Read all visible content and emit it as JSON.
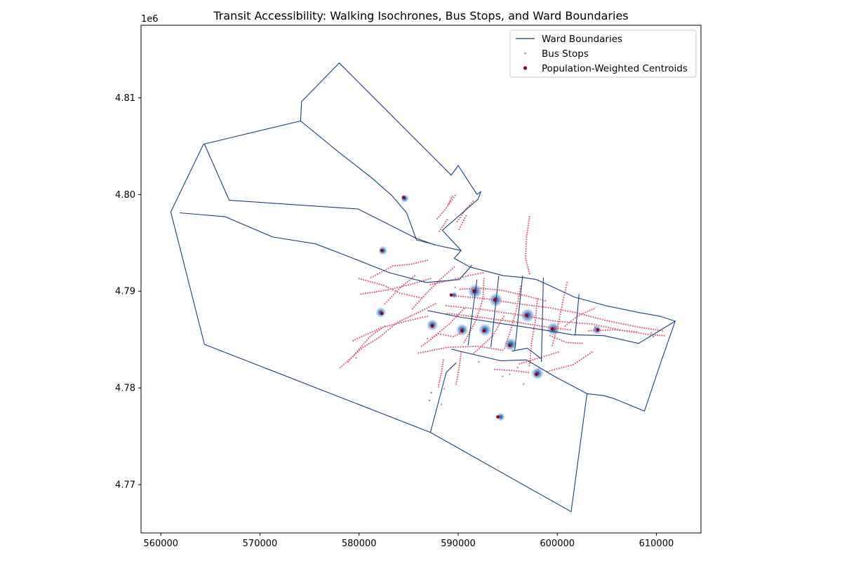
{
  "chart_data": {
    "type": "map",
    "title": "Transit Accessibility: Walking Isochrones, Bus Stops, and Ward Boundaries",
    "xlim": [
      558000,
      614500
    ],
    "ylim": [
      4765000,
      4817500
    ],
    "y_offset_label": "1e6",
    "xticks": [
      560000,
      570000,
      580000,
      590000,
      600000,
      610000
    ],
    "xtick_labels": [
      "560000",
      "570000",
      "580000",
      "590000",
      "600000",
      "610000"
    ],
    "yticks": [
      4770000,
      4780000,
      4790000,
      4800000,
      4810000
    ],
    "ytick_labels": [
      "4.77",
      "4.78",
      "4.79",
      "4.80",
      "4.81"
    ],
    "colors": {
      "ward_boundary": "#1f3d73",
      "bus_stop": "#d46b7e",
      "centroid": "#8b0020",
      "isochrone_outer": "#aec9e8",
      "isochrone_mid": "#6f95c4",
      "isochrone_inner": "#2f5a96"
    },
    "legend": {
      "position": "top-right",
      "entries": [
        {
          "label": "Ward Boundaries",
          "kind": "line"
        },
        {
          "label": "Bus Stops",
          "kind": "small-point"
        },
        {
          "label": "Population-Weighted Centroids",
          "kind": "point"
        }
      ]
    },
    "outer_boundary": [
      [
        561000,
        4798200
      ],
      [
        564300,
        4805200
      ],
      [
        574100,
        4807600
      ],
      [
        574200,
        4809600
      ],
      [
        578000,
        4813600
      ],
      [
        589300,
        4802000
      ],
      [
        590000,
        4803000
      ],
      [
        591900,
        4800000
      ],
      [
        592300,
        4800300
      ],
      [
        592000,
        4799500
      ],
      [
        588400,
        4796300
      ],
      [
        590300,
        4794200
      ],
      [
        589600,
        4793400
      ],
      [
        591200,
        4792500
      ],
      [
        594600,
        4791600
      ],
      [
        596700,
        4791400
      ],
      [
        597900,
        4791200
      ],
      [
        599400,
        4790500
      ],
      [
        601700,
        4789400
      ],
      [
        604900,
        4788500
      ],
      [
        608200,
        4787800
      ],
      [
        610400,
        4787400
      ],
      [
        611900,
        4786900
      ],
      [
        610500,
        4782800
      ],
      [
        608800,
        4777600
      ],
      [
        605700,
        4778900
      ],
      [
        604700,
        4779200
      ],
      [
        603000,
        4779400
      ],
      [
        601400,
        4767200
      ],
      [
        587200,
        4775400
      ],
      [
        564400,
        4784500
      ],
      [
        561000,
        4798200
      ]
    ],
    "inner_boundaries": [
      [
        [
          561900,
          4798100
        ],
        [
          566500,
          4797700
        ],
        [
          571300,
          4795600
        ],
        [
          575600,
          4794900
        ],
        [
          579400,
          4793400
        ],
        [
          583100,
          4791900
        ],
        [
          586800,
          4790900
        ],
        [
          590100,
          4791200
        ],
        [
          591400,
          4792700
        ]
      ],
      [
        [
          564400,
          4805200
        ],
        [
          566900,
          4799400
        ],
        [
          579900,
          4798500
        ],
        [
          585700,
          4795500
        ],
        [
          587600,
          4794800
        ],
        [
          590300,
          4794200
        ]
      ],
      [
        [
          574100,
          4807600
        ],
        [
          577800,
          4804500
        ],
        [
          581300,
          4801700
        ],
        [
          583300,
          4799900
        ],
        [
          584800,
          4798100
        ],
        [
          585800,
          4795300
        ],
        [
          587700,
          4794800
        ]
      ],
      [
        [
          587200,
          4775400
        ],
        [
          588800,
          4781600
        ],
        [
          589800,
          4782600
        ]
      ],
      [
        [
          589300,
          4784000
        ],
        [
          594300,
          4782800
        ],
        [
          596900,
          4782900
        ],
        [
          599700,
          4781200
        ],
        [
          603000,
          4779400
        ]
      ],
      [
        [
          586900,
          4788000
        ],
        [
          590300,
          4787300
        ],
        [
          594700,
          4786600
        ],
        [
          598600,
          4786000
        ],
        [
          601500,
          4785500
        ],
        [
          604700,
          4785400
        ],
        [
          608200,
          4784600
        ],
        [
          611900,
          4786900
        ]
      ],
      [
        [
          591000,
          4784400
        ],
        [
          591900,
          4791200
        ]
      ],
      [
        [
          593300,
          4784200
        ],
        [
          594100,
          4791600
        ]
      ],
      [
        [
          595700,
          4783800
        ],
        [
          596500,
          4791600
        ]
      ],
      [
        [
          598400,
          4782700
        ],
        [
          598600,
          4791400
        ]
      ],
      [
        [
          601800,
          4785400
        ],
        [
          602200,
          4789700
        ]
      ],
      [
        [
          595400,
          4783800
        ],
        [
          597000,
          4784100
        ],
        [
          598400,
          4783000
        ]
      ]
    ],
    "isochrones": [
      {
        "x": 584600,
        "y": 4799600,
        "r": 380
      },
      {
        "x": 582400,
        "y": 4794200,
        "r": 420
      },
      {
        "x": 582200,
        "y": 4787800,
        "r": 480
      },
      {
        "x": 587400,
        "y": 4786500,
        "r": 520
      },
      {
        "x": 589600,
        "y": 4789600,
        "r": 300
      },
      {
        "x": 591700,
        "y": 4790000,
        "r": 650
      },
      {
        "x": 593800,
        "y": 4789100,
        "r": 620
      },
      {
        "x": 597000,
        "y": 4787500,
        "r": 640
      },
      {
        "x": 599600,
        "y": 4786100,
        "r": 600
      },
      {
        "x": 604000,
        "y": 4786000,
        "r": 420
      },
      {
        "x": 590400,
        "y": 4786000,
        "r": 560
      },
      {
        "x": 592700,
        "y": 4786000,
        "r": 580
      },
      {
        "x": 595300,
        "y": 4784500,
        "r": 600
      },
      {
        "x": 598000,
        "y": 4781500,
        "r": 560
      },
      {
        "x": 594300,
        "y": 4777000,
        "r": 380
      }
    ],
    "centroids": [
      [
        584500,
        4799700
      ],
      [
        582300,
        4794200
      ],
      [
        582300,
        4787700
      ],
      [
        587400,
        4786400
      ],
      [
        589300,
        4789600
      ],
      [
        591600,
        4790000
      ],
      [
        593700,
        4789100
      ],
      [
        596900,
        4787500
      ],
      [
        599500,
        4786100
      ],
      [
        604100,
        4786000
      ],
      [
        590400,
        4785900
      ],
      [
        592600,
        4785900
      ],
      [
        595200,
        4784400
      ],
      [
        597900,
        4781400
      ],
      [
        594000,
        4777000
      ]
    ],
    "bus_stop_corridors": [
      [
        [
          578100,
          4782100
        ],
        [
          580400,
          4784200
        ],
        [
          582000,
          4785200
        ],
        [
          583900,
          4786800
        ],
        [
          586200,
          4787900
        ],
        [
          587700,
          4788700
        ]
      ],
      [
        [
          578900,
          4782700
        ],
        [
          581100,
          4785300
        ],
        [
          582600,
          4786400
        ]
      ],
      [
        [
          579400,
          4784900
        ],
        [
          582200,
          4786200
        ],
        [
          584700,
          4786900
        ],
        [
          586900,
          4787400
        ]
      ],
      [
        [
          580200,
          4789700
        ],
        [
          582700,
          4790100
        ],
        [
          585200,
          4790700
        ],
        [
          587200,
          4791300
        ]
      ],
      [
        [
          580000,
          4791300
        ],
        [
          582500,
          4790600
        ],
        [
          584100,
          4789800
        ],
        [
          586300,
          4789300
        ]
      ],
      [
        [
          581200,
          4791400
        ],
        [
          583400,
          4792600
        ],
        [
          585300,
          4792800
        ],
        [
          586900,
          4793200
        ]
      ],
      [
        [
          585400,
          4788200
        ],
        [
          587000,
          4790000
        ],
        [
          588500,
          4791500
        ],
        [
          589600,
          4792500
        ]
      ],
      [
        [
          582600,
          4788700
        ],
        [
          584000,
          4790200
        ],
        [
          585600,
          4791600
        ]
      ],
      [
        [
          586000,
          4783600
        ],
        [
          589000,
          4784200
        ],
        [
          592000,
          4784300
        ],
        [
          594500,
          4783900
        ]
      ],
      [
        [
          586300,
          4784300
        ],
        [
          588000,
          4785600
        ],
        [
          589500,
          4785300
        ],
        [
          590500,
          4785800
        ]
      ],
      [
        [
          587200,
          4790700
        ],
        [
          589500,
          4791200
        ],
        [
          591000,
          4791600
        ],
        [
          592500,
          4791900
        ]
      ],
      [
        [
          587900,
          4797500
        ],
        [
          588800,
          4798600
        ],
        [
          589700,
          4799900
        ]
      ],
      [
        [
          589900,
          4797200
        ],
        [
          590800,
          4798500
        ],
        [
          591500,
          4799300
        ]
      ],
      [
        [
          588100,
          4796200
        ],
        [
          588900,
          4797400
        ]
      ],
      [
        [
          589000,
          4799000
        ],
        [
          589400,
          4799800
        ]
      ],
      [
        [
          590100,
          4796400
        ],
        [
          590800,
          4797800
        ]
      ],
      [
        [
          597200,
          4797700
        ],
        [
          596900,
          4795600
        ],
        [
          596800,
          4793400
        ],
        [
          597200,
          4791800
        ]
      ],
      [
        [
          599000,
          4781700
        ],
        [
          601600,
          4782400
        ],
        [
          603500,
          4783700
        ]
      ],
      [
        [
          588800,
          4788500
        ],
        [
          592500,
          4788100
        ],
        [
          596500,
          4787500
        ],
        [
          599800,
          4786900
        ],
        [
          603500,
          4786600
        ],
        [
          606800,
          4785900
        ],
        [
          609400,
          4785500
        ],
        [
          610800,
          4785400
        ]
      ],
      [
        [
          588900,
          4787700
        ],
        [
          592200,
          4787300
        ],
        [
          595900,
          4786800
        ],
        [
          598900,
          4786300
        ],
        [
          601300,
          4786000
        ]
      ],
      [
        [
          589800,
          4789500
        ],
        [
          592900,
          4789200
        ],
        [
          596000,
          4788700
        ],
        [
          599100,
          4788300
        ],
        [
          601800,
          4787800
        ],
        [
          604800,
          4787000
        ],
        [
          608100,
          4786300
        ],
        [
          610600,
          4785900
        ]
      ],
      [
        [
          590200,
          4790200
        ],
        [
          592300,
          4790300
        ],
        [
          594400,
          4790100
        ],
        [
          596900,
          4789500
        ],
        [
          598800,
          4789000
        ]
      ],
      [
        [
          590600,
          4784700
        ],
        [
          591800,
          4787000
        ],
        [
          592500,
          4789200
        ],
        [
          592600,
          4791300
        ]
      ],
      [
        [
          594700,
          4784100
        ],
        [
          595300,
          4786000
        ],
        [
          595900,
          4788200
        ],
        [
          596300,
          4790500
        ]
      ],
      [
        [
          597200,
          4782300
        ],
        [
          597400,
          4784600
        ],
        [
          597800,
          4787000
        ],
        [
          598000,
          4789200
        ]
      ],
      [
        [
          599500,
          4784400
        ],
        [
          600100,
          4786600
        ],
        [
          600600,
          4789100
        ],
        [
          601000,
          4790900
        ]
      ],
      [
        [
          600800,
          4786400
        ],
        [
          602000,
          4787400
        ],
        [
          603700,
          4788200
        ]
      ],
      [
        [
          603200,
          4785900
        ],
        [
          605800,
          4786000
        ],
        [
          608000,
          4785800
        ]
      ],
      [
        [
          591600,
          4783600
        ],
        [
          593500,
          4785400
        ],
        [
          594600,
          4787400
        ]
      ],
      [
        [
          596200,
          4782500
        ],
        [
          598200,
          4783100
        ],
        [
          600100,
          4783700
        ]
      ],
      [
        [
          599300,
          4785400
        ],
        [
          600900,
          4784700
        ],
        [
          602500,
          4784600
        ]
      ],
      [
        [
          588000,
          4780100
        ],
        [
          588300,
          4781500
        ],
        [
          588500,
          4782900
        ]
      ],
      [
        [
          589800,
          4780400
        ],
        [
          590100,
          4782100
        ],
        [
          590300,
          4783700
        ]
      ],
      [
        [
          593700,
          4781900
        ],
        [
          595400,
          4781800
        ],
        [
          597100,
          4781600
        ]
      ],
      [
        [
          587400,
          4785200
        ],
        [
          589100,
          4786600
        ],
        [
          590600,
          4788200
        ]
      ]
    ],
    "bus_stops_isolated": [
      [
        587100,
        4778700
      ],
      [
        587300,
        4779500
      ],
      [
        588300,
        4778300
      ],
      [
        588600,
        4779900
      ],
      [
        594500,
        4781200
      ],
      [
        595200,
        4781400
      ],
      [
        596000,
        4782100
      ],
      [
        592100,
        4782700
      ],
      [
        596600,
        4780400
      ],
      [
        609500,
        4785700
      ],
      [
        609700,
        4785300
      ],
      [
        603800,
        4786300
      ],
      [
        598100,
        4781900
      ],
      [
        589700,
        4790400
      ],
      [
        586900,
        4785100
      ],
      [
        579700,
        4783100
      ]
    ]
  }
}
